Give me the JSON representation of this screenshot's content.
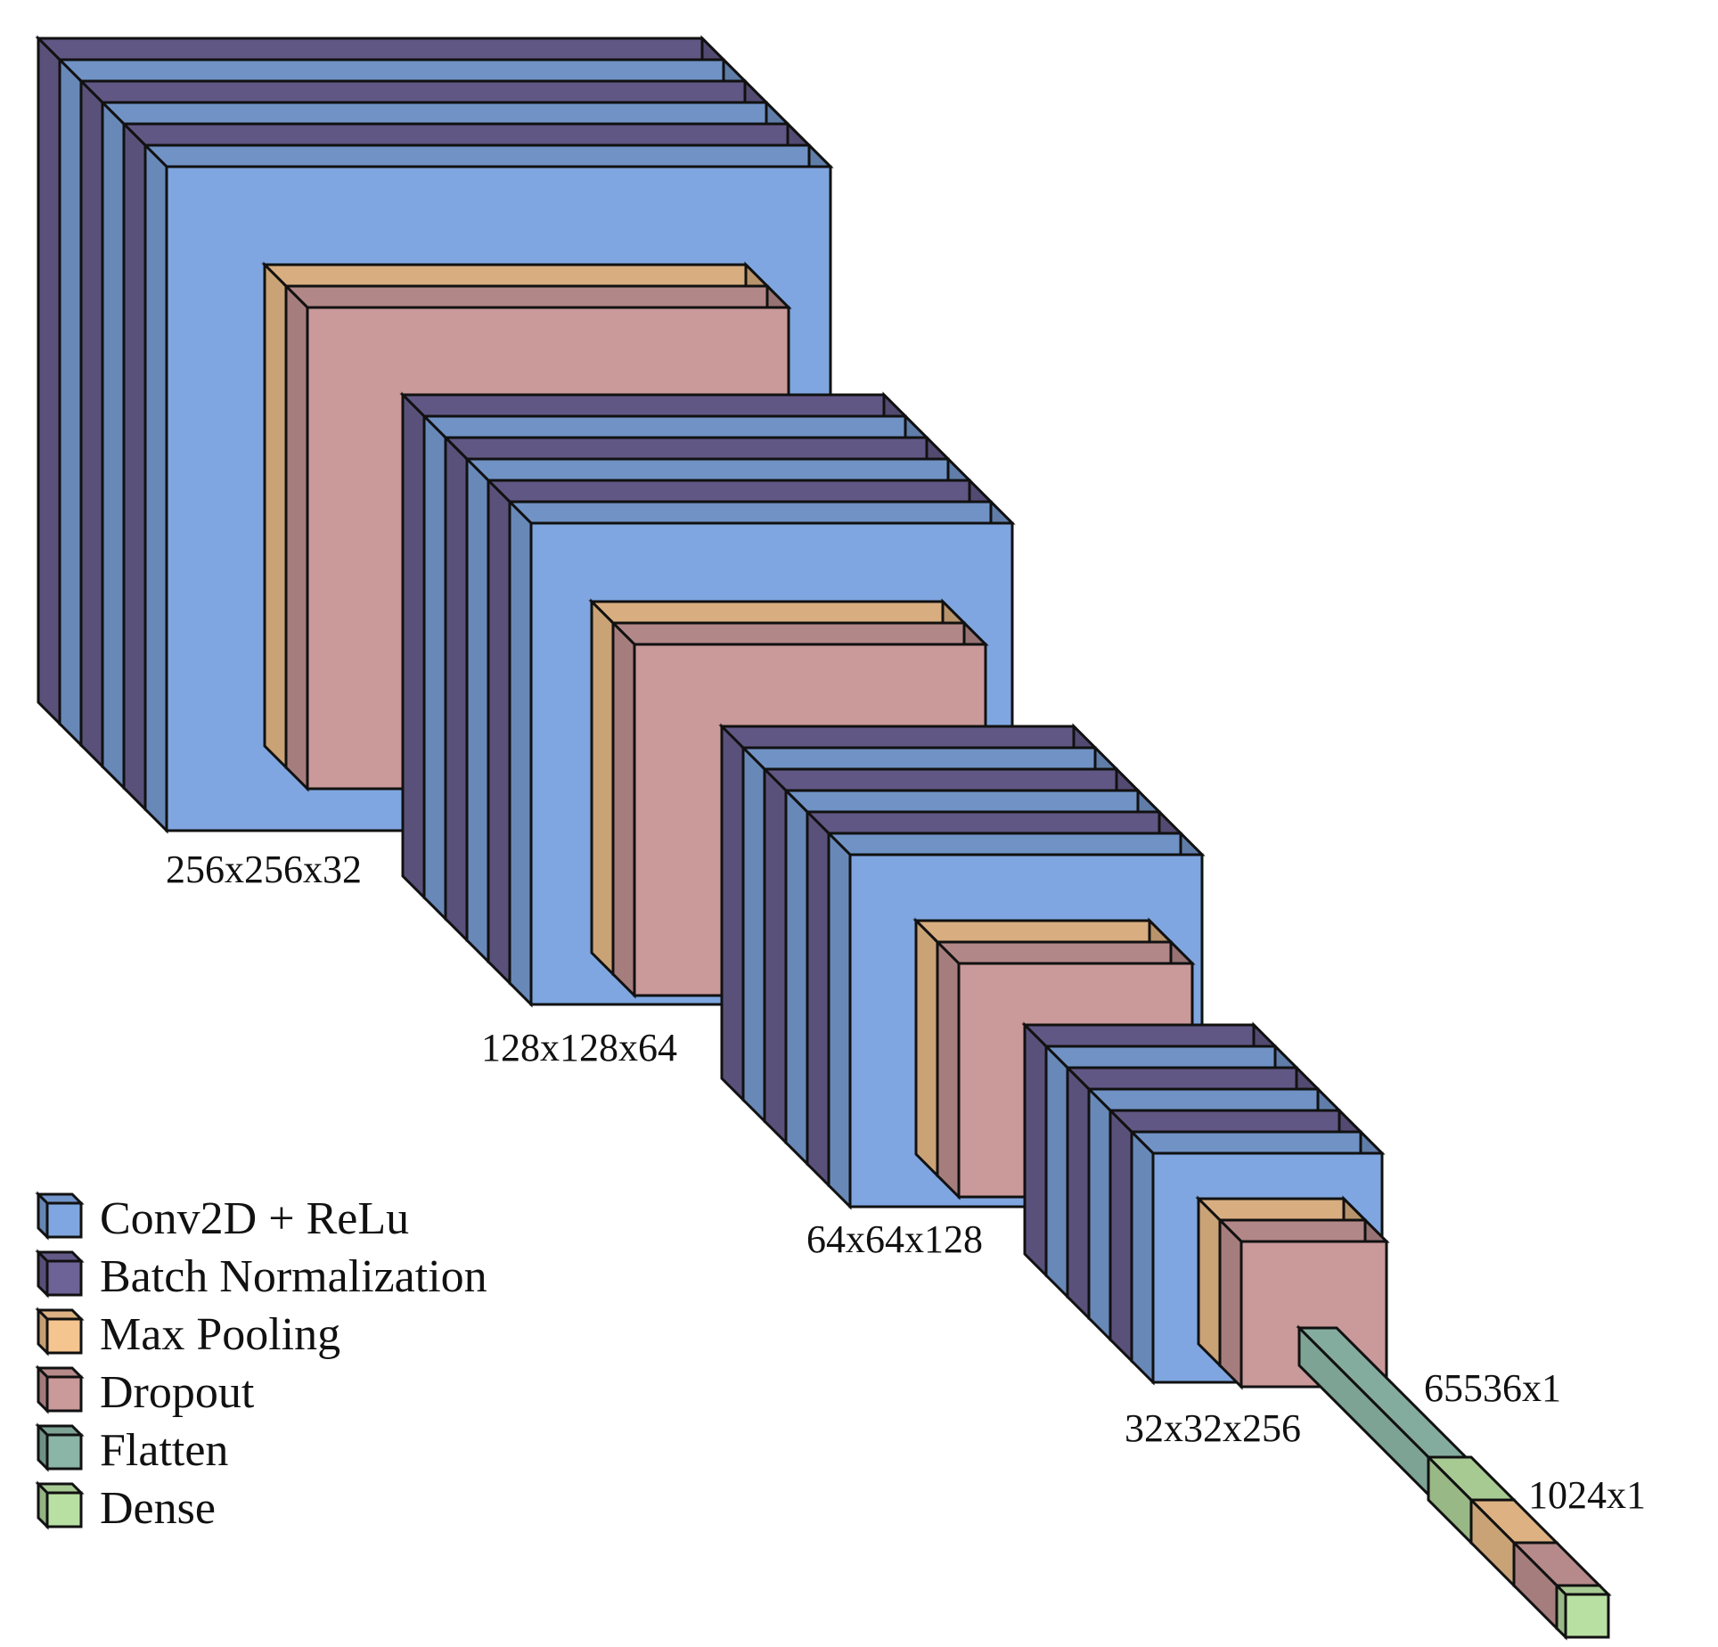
{
  "colors": {
    "conv": "#7FA6E0",
    "batch_norm": "#6E6396",
    "max_pool": "#F5C590",
    "dropout": "#CA9999",
    "flatten": "#8BB5A6",
    "dense": "#B9E0A3",
    "outline": "#111111"
  },
  "legend": [
    {
      "key": "conv",
      "label": "Conv2D + ReLu"
    },
    {
      "key": "batch_norm",
      "label": "Batch Normalization"
    },
    {
      "key": "max_pool",
      "label": "Max Pooling"
    },
    {
      "key": "dropout",
      "label": "Dropout"
    },
    {
      "key": "flatten",
      "label": "Flatten"
    },
    {
      "key": "dense",
      "label": "Dense"
    }
  ],
  "blocks": [
    {
      "name": "block-1",
      "dimension": "256x256x32",
      "stack": [
        "batch_norm",
        "conv",
        "batch_norm",
        "conv",
        "batch_norm",
        "conv"
      ],
      "pool": [
        "max_pool",
        "dropout"
      ]
    },
    {
      "name": "block-2",
      "dimension": "128x128x64",
      "stack": [
        "batch_norm",
        "conv",
        "batch_norm",
        "conv",
        "batch_norm",
        "conv"
      ],
      "pool": [
        "max_pool",
        "dropout"
      ]
    },
    {
      "name": "block-3",
      "dimension": "64x64x128",
      "stack": [
        "batch_norm",
        "conv",
        "batch_norm",
        "conv",
        "batch_norm",
        "conv"
      ],
      "pool": [
        "max_pool",
        "dropout"
      ]
    },
    {
      "name": "block-4",
      "dimension": "32x32x256",
      "stack": [
        "batch_norm",
        "conv",
        "batch_norm",
        "conv",
        "batch_norm",
        "conv"
      ],
      "pool": [
        "max_pool",
        "dropout"
      ]
    }
  ],
  "flatten_layer": {
    "type": "flatten",
    "dimension": "65536x1"
  },
  "dense_head": {
    "dimension": "1024x1",
    "stack": [
      "dense",
      "max_pool",
      "dropout",
      "dense"
    ]
  }
}
